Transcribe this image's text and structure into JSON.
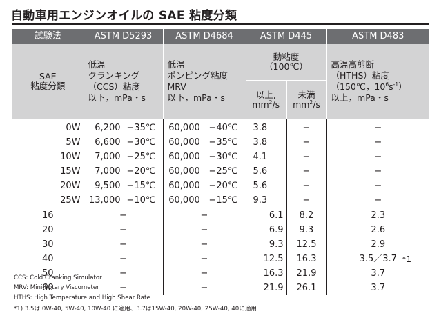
{
  "title": "自動車用エンジンオイルの SAE 粘度分類",
  "header": {
    "method": "試験法",
    "d5293": "ASTM D5293",
    "d4684": "ASTM D4684",
    "d445": "ASTM D445",
    "d483": "ASTM D483"
  },
  "subheader": {
    "grade_line1": "SAE",
    "grade_line2": "粘度分類",
    "ccs_line1": "低温",
    "ccs_line2": "クランキング",
    "ccs_line3": "（CCS）粘度",
    "ccs_line4": "以下，mPa・s",
    "mrv_line1": "低温",
    "mrv_line2": "ポンピング粘度",
    "mrv_line3": "MRV",
    "mrv_line4": "以下，mPa・s",
    "kv_line1": "動粘度",
    "kv_line2": "（100℃）",
    "kv_min_line1": "以上,",
    "kv_min_line2": "mm",
    "kv_min_exp": "2",
    "kv_min_line3": "/s",
    "kv_max_line1": "未満",
    "kv_max_line2": "mm",
    "kv_max_exp": "2",
    "kv_max_line3": "/s",
    "hths_line1": "高温高剪断",
    "hths_line2": "（HTHS）粘度",
    "hths_line3a": "（150℃，10",
    "hths_exp": "6",
    "hths_line3b": "s",
    "hths_exp2": "-1",
    "hths_line3c": "）",
    "hths_line4": "以上，mPa・s"
  },
  "winter_grades": [
    {
      "grade": "0W",
      "ccs_val": "6,200",
      "ccs_temp": "−35℃",
      "mrv_val": "60,000",
      "mrv_temp": "−40℃",
      "kv_min": "3.8",
      "kv_max": "−",
      "hths": "−"
    },
    {
      "grade": "5W",
      "ccs_val": "6,600",
      "ccs_temp": "−30℃",
      "mrv_val": "60,000",
      "mrv_temp": "−35℃",
      "kv_min": "3.8",
      "kv_max": "−",
      "hths": "−"
    },
    {
      "grade": "10W",
      "ccs_val": "7,000",
      "ccs_temp": "−25℃",
      "mrv_val": "60,000",
      "mrv_temp": "−30℃",
      "kv_min": "4.1",
      "kv_max": "−",
      "hths": "−"
    },
    {
      "grade": "15W",
      "ccs_val": "7,000",
      "ccs_temp": "−20℃",
      "mrv_val": "60,000",
      "mrv_temp": "−25℃",
      "kv_min": "5.6",
      "kv_max": "−",
      "hths": "−"
    },
    {
      "grade": "20W",
      "ccs_val": "9,500",
      "ccs_temp": "−15℃",
      "mrv_val": "60,000",
      "mrv_temp": "−20℃",
      "kv_min": "5.6",
      "kv_max": "−",
      "hths": "−"
    },
    {
      "grade": "25W",
      "ccs_val": "13,000",
      "ccs_temp": "−10℃",
      "mrv_val": "60,000",
      "mrv_temp": "−15℃",
      "kv_min": "9.3",
      "kv_max": "−",
      "hths": "−"
    }
  ],
  "summer_grades": [
    {
      "grade": "16",
      "ccs": "−",
      "mrv": "−",
      "kv_min": "6.1",
      "kv_max": "8.2",
      "hths": "2.3",
      "note": ""
    },
    {
      "grade": "20",
      "ccs": "−",
      "mrv": "−",
      "kv_min": "6.9",
      "kv_max": "9.3",
      "hths": "2.6",
      "note": ""
    },
    {
      "grade": "30",
      "ccs": "−",
      "mrv": "−",
      "kv_min": "9.3",
      "kv_max": "12.5",
      "hths": "2.9",
      "note": ""
    },
    {
      "grade": "40",
      "ccs": "−",
      "mrv": "−",
      "kv_min": "12.5",
      "kv_max": "16.3",
      "hths": "3.5／3.7",
      "note": "*1"
    },
    {
      "grade": "50",
      "ccs": "−",
      "mrv": "−",
      "kv_min": "16.3",
      "kv_max": "21.9",
      "hths": "3.7",
      "note": ""
    },
    {
      "grade": "60",
      "ccs": "−",
      "mrv": "−",
      "kv_min": "21.9",
      "kv_max": "26.1",
      "hths": "3.7",
      "note": ""
    }
  ],
  "footnotes": [
    "CCS: Cold Cranking Simulator",
    "MRV: Mini-Rotary Viscometer",
    "HTHS: High Temperature and High Shear Rate",
    "*1) 3.5は 0W-40, 5W-40, 10W-40 に適用、3.7は15W-40, 20W-40, 25W-40, 40に適用"
  ]
}
